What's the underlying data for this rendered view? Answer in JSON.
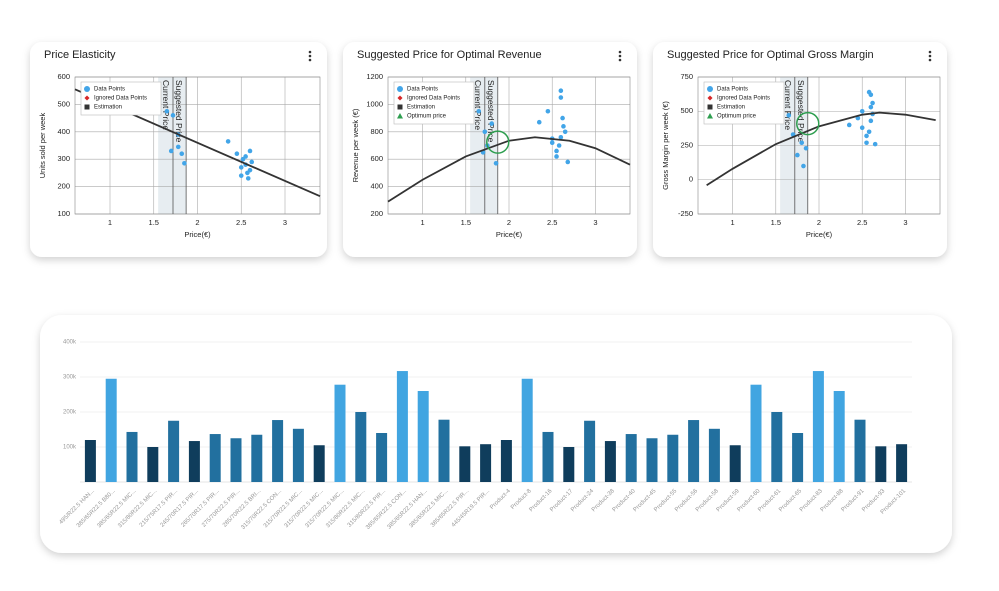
{
  "chart_data": [
    {
      "type": "scatter",
      "title": "Price Elasticity",
      "x_label": "Price(€)",
      "y_label": "Units sold per week",
      "xlim": [
        0.6,
        3.4
      ],
      "ylim": [
        100,
        600
      ],
      "xticks": [
        1,
        1.5,
        2,
        2.5,
        3
      ],
      "yticks": [
        100,
        200,
        300,
        400,
        500,
        600
      ],
      "grid": true,
      "band": [
        1.55,
        1.87
      ],
      "annotations": [
        {
          "text": "Current Price",
          "x": 1.72
        },
        {
          "text": "Suggested Price",
          "x": 1.87
        }
      ],
      "series": [
        {
          "name": "Data Points",
          "color": "#42a5e8",
          "mark": "point",
          "x": [
            1.65,
            1.72,
            1.7,
            1.78,
            1.82,
            1.85,
            1.78,
            2.35,
            2.45,
            2.52,
            2.55,
            2.6,
            2.5,
            2.58,
            2.6,
            2.55,
            2.62,
            2.5,
            2.57
          ],
          "values": [
            475,
            460,
            330,
            345,
            320,
            285,
            390,
            365,
            320,
            300,
            280,
            260,
            240,
            230,
            330,
            310,
            290,
            270,
            250
          ]
        },
        {
          "name": "Ignored Data Points",
          "color": "#d62728",
          "mark": "diamond",
          "x": [],
          "values": []
        },
        {
          "name": "Estimation",
          "color": "#333333",
          "mark": "line",
          "x": [
            0.6,
            3.4
          ],
          "values": [
            555,
            165
          ]
        }
      ]
    },
    {
      "type": "scatter",
      "title": "Suggested Price for Optimal Revenue",
      "x_label": "Price(€)",
      "y_label": "Revenue per week (€)",
      "xlim": [
        0.6,
        3.4
      ],
      "ylim": [
        200,
        1200
      ],
      "xticks": [
        1,
        1.5,
        2,
        2.5,
        3
      ],
      "yticks": [
        200,
        400,
        600,
        800,
        1000,
        1200
      ],
      "grid": true,
      "band": [
        1.55,
        1.87
      ],
      "annotations": [
        {
          "text": "Current Price",
          "x": 1.72
        },
        {
          "text": "Suggested Price",
          "x": 1.87
        }
      ],
      "series": [
        {
          "name": "Data Points",
          "color": "#42a5e8",
          "mark": "point",
          "x": [
            1.65,
            1.72,
            1.75,
            1.7,
            1.85,
            1.8,
            2.35,
            2.45,
            2.5,
            2.55,
            2.6,
            2.6,
            2.62,
            2.65,
            2.58,
            2.55,
            2.68,
            2.6,
            2.63,
            2.5
          ],
          "values": [
            950,
            800,
            700,
            650,
            570,
            860,
            870,
            950,
            750,
            620,
            1100,
            1050,
            900,
            800,
            700,
            660,
            580,
            760,
            840,
            720
          ]
        },
        {
          "name": "Ignored Data Points",
          "color": "#d62728",
          "mark": "diamond",
          "x": [],
          "values": []
        },
        {
          "name": "Estimation",
          "color": "#333333",
          "mark": "line",
          "x": [
            0.6,
            1,
            1.5,
            2,
            2.3,
            2.7,
            3,
            3.4
          ],
          "values": [
            290,
            450,
            620,
            735,
            760,
            735,
            680,
            560
          ]
        },
        {
          "name": "Optimum price",
          "color": "#2e9e4f",
          "mark": "optimum",
          "x": [
            1.87
          ],
          "values": [
            725
          ]
        }
      ]
    },
    {
      "type": "scatter",
      "title": "Suggested Price for Optimal Gross Margin",
      "x_label": "Price(€)",
      "y_label": "Gross Margin per week (€)",
      "xlim": [
        0.6,
        3.4
      ],
      "ylim": [
        -250,
        750
      ],
      "xticks": [
        1,
        1.5,
        2,
        2.5,
        3
      ],
      "yticks": [
        -250,
        0,
        250,
        500,
        750
      ],
      "grid": true,
      "band": [
        1.55,
        1.87
      ],
      "annotations": [
        {
          "text": "Current Price",
          "x": 1.72
        },
        {
          "text": "Suggested Price",
          "x": 1.87
        }
      ],
      "series": [
        {
          "name": "Data Points",
          "color": "#42a5e8",
          "mark": "point",
          "x": [
            1.65,
            1.7,
            1.75,
            1.8,
            1.82,
            1.85,
            2.35,
            2.45,
            2.5,
            2.55,
            2.58,
            2.6,
            2.6,
            2.62,
            2.6,
            2.55,
            2.65,
            2.58,
            2.62,
            2.5
          ],
          "values": [
            470,
            330,
            180,
            270,
            100,
            230,
            400,
            450,
            380,
            320,
            640,
            620,
            530,
            480,
            430,
            270,
            260,
            350,
            560,
            500
          ]
        },
        {
          "name": "Ignored Data Points",
          "color": "#d62728",
          "mark": "diamond",
          "x": [],
          "values": []
        },
        {
          "name": "Estimation",
          "color": "#333333",
          "mark": "line",
          "x": [
            0.7,
            1,
            1.5,
            2,
            2.5,
            2.7,
            3,
            3.35
          ],
          "values": [
            -40,
            80,
            260,
            390,
            475,
            490,
            475,
            435
          ]
        },
        {
          "name": "Optimum price",
          "color": "#2e9e4f",
          "mark": "optimum",
          "x": [
            1.87
          ],
          "values": [
            410
          ]
        }
      ]
    },
    {
      "type": "bar",
      "categories": [
        "495/R22.5 HAN...",
        "385/65R22.5 B80...",
        "385/65R22.5 MIC...",
        "315/80R22.5 MIC...",
        "215/75R17.5 PIR...",
        "245/70R17.5 PIR...",
        "265/70R17.5 PIR...",
        "275/70R22.5 PIR...",
        "285/70R22.5 BRI...",
        "315/70R22.5 CON...",
        "315/70R22.5 MIC...",
        "315/70R22.5 MIC...",
        "315/70R22.5 MIC...",
        "315/80R22.5 MIC...",
        "315/80R22.5 PIR...",
        "385/65R22.5 CON...",
        "385/65R22.5 HAN...",
        "385/65R22.5 MIC...",
        "385/65R22.5 PIR...",
        "445/45R19.5 PIR...",
        "Product-4",
        "Product-8",
        "Product-16",
        "Product-17",
        "Product-24",
        "Product-38",
        "Product-40",
        "Product-45",
        "Product-55",
        "Product-56",
        "Product-58",
        "Product-59",
        "Product-60",
        "Product-61",
        "Product-65",
        "Product-83",
        "Product-88",
        "Product-91",
        "Product-93",
        "Product-101"
      ],
      "values": [
        120000,
        295000,
        143000,
        100000,
        175000,
        117000,
        137000,
        125000,
        135000,
        177000,
        152000,
        105000,
        278000,
        200000,
        140000,
        317000,
        260000,
        178000,
        102000,
        108000,
        120000,
        295000,
        143000,
        100000,
        175000,
        117000,
        137000,
        125000,
        135000,
        177000,
        152000,
        105000,
        278000,
        200000,
        140000,
        317000,
        260000,
        178000,
        102000,
        108000
      ],
      "colors": [
        "#0f3d5c",
        "#41a5e1",
        "#22709f",
        "#0f3d5c",
        "#22709f",
        "#0f3d5c",
        "#22709f",
        "#22709f",
        "#22709f",
        "#22709f",
        "#22709f",
        "#0f3d5c",
        "#41a5e1",
        "#22709f",
        "#22709f",
        "#41a5e1",
        "#41a5e1",
        "#22709f",
        "#0f3d5c",
        "#0f3d5c",
        "#0f3d5c",
        "#41a5e1",
        "#22709f",
        "#0f3d5c",
        "#22709f",
        "#0f3d5c",
        "#22709f",
        "#22709f",
        "#22709f",
        "#22709f",
        "#22709f",
        "#0f3d5c",
        "#41a5e1",
        "#22709f",
        "#22709f",
        "#41a5e1",
        "#41a5e1",
        "#22709f",
        "#0f3d5c",
        "#0f3d5c"
      ],
      "ylim": [
        0,
        400000
      ],
      "yticks": [
        {
          "value": 100000,
          "label": "100k"
        },
        {
          "value": 200000,
          "label": "200k"
        },
        {
          "value": 300000,
          "label": "300k"
        },
        {
          "value": 400000,
          "label": "400k"
        }
      ],
      "grid": true
    }
  ]
}
